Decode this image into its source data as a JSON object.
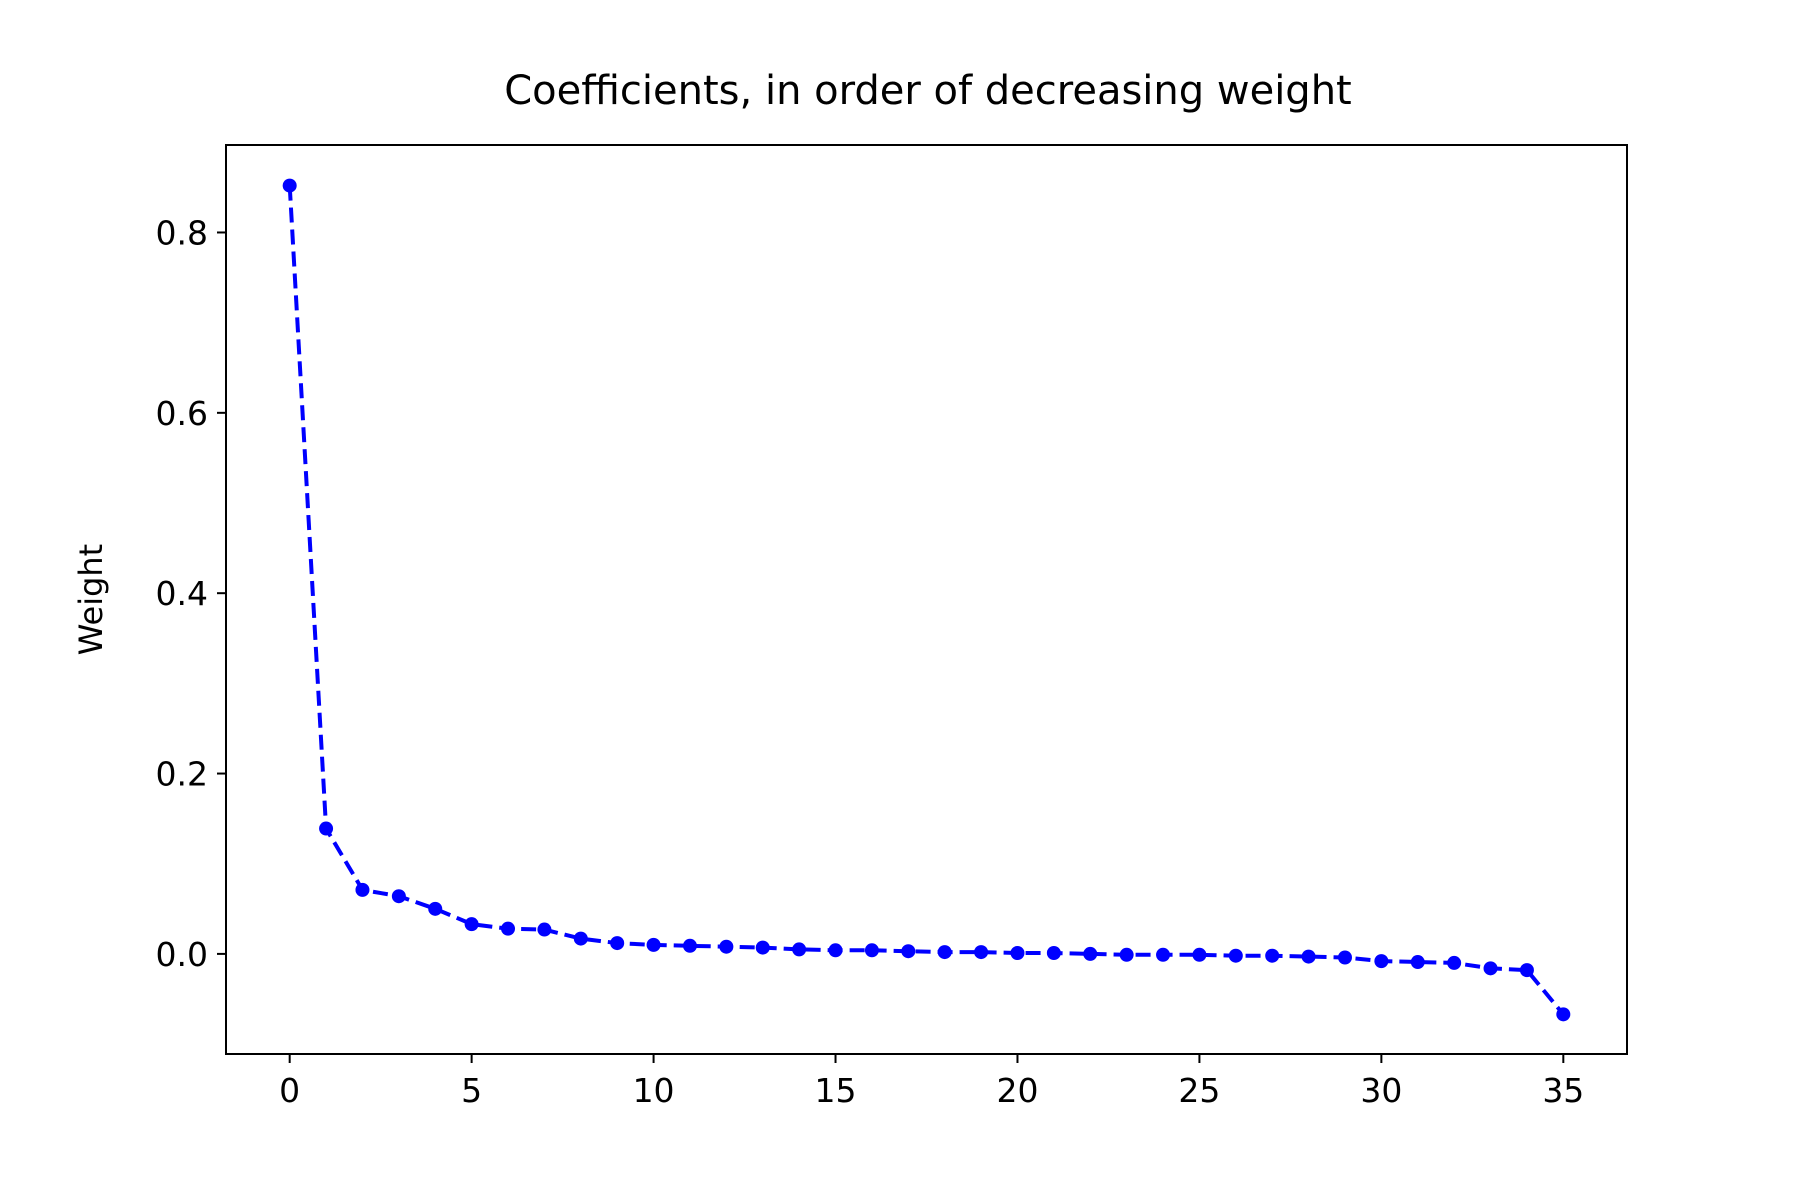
{
  "chart_data": {
    "type": "line",
    "title": "Coefficients, in order of decreasing weight",
    "xlabel": "",
    "ylabel": "Weight",
    "xlim": [
      -1.75,
      36.75
    ],
    "ylim": [
      -0.111,
      0.897
    ],
    "xticks": [
      0,
      5,
      10,
      15,
      20,
      25,
      30,
      35
    ],
    "xtick_labels": [
      "0",
      "5",
      "10",
      "15",
      "20",
      "25",
      "30",
      "35"
    ],
    "yticks": [
      0.0,
      0.2,
      0.4,
      0.6,
      0.8
    ],
    "ytick_labels": [
      "0.0",
      "0.2",
      "0.4",
      "0.6",
      "0.8"
    ],
    "grid": false,
    "legend": "none",
    "series": [
      {
        "color": "#0000ff",
        "line_style": "dashed",
        "marker": "dot",
        "x": [
          0,
          1,
          2,
          3,
          4,
          5,
          6,
          7,
          8,
          9,
          10,
          11,
          12,
          13,
          14,
          15,
          16,
          17,
          18,
          19,
          20,
          21,
          22,
          23,
          24,
          25,
          26,
          27,
          28,
          29,
          30,
          31,
          32,
          33,
          34,
          35
        ],
        "y": [
          0.852,
          0.139,
          0.071,
          0.064,
          0.05,
          0.033,
          0.028,
          0.027,
          0.017,
          0.012,
          0.01,
          0.009,
          0.008,
          0.007,
          0.005,
          0.004,
          0.004,
          0.003,
          0.002,
          0.002,
          0.001,
          0.001,
          0.0,
          -0.001,
          -0.001,
          -0.001,
          -0.002,
          -0.002,
          -0.003,
          -0.004,
          -0.008,
          -0.009,
          -0.01,
          -0.016,
          -0.018,
          -0.067
        ]
      }
    ]
  }
}
